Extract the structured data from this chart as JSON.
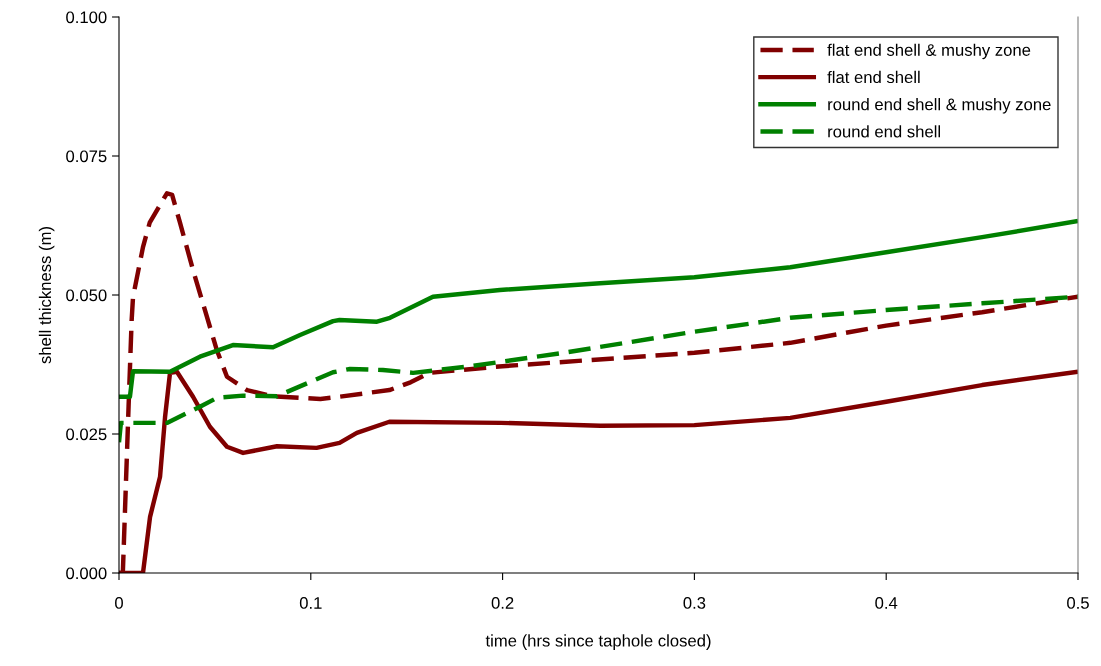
{
  "chart_data": {
    "type": "line",
    "xlabel": "time (hrs since taphole closed)",
    "ylabel": "shell thickness (m)",
    "xlim": [
      0,
      0.5
    ],
    "xticks": [
      0,
      0.1,
      0.2,
      0.3,
      0.4,
      0.5
    ],
    "ylim": [
      0,
      0.1
    ],
    "yticks": [
      {
        "value": 0,
        "label": "0.000"
      },
      {
        "value": 0.025,
        "label": "0.025"
      },
      {
        "value": 0.05,
        "label": "0.050"
      },
      {
        "value": 0.075,
        "label": "0.075"
      },
      {
        "value": 0.1,
        "label": "0.100"
      }
    ],
    "grid": false,
    "legend": "top right",
    "marker": "none",
    "series": [
      {
        "name": "flat end shell & mushy zone",
        "color": "#800000",
        "line_style": "dashed",
        "x": [
          0,
          0.002,
          0.004,
          0.005,
          0.0066,
          0.0073,
          0.0125,
          0.016,
          0.025,
          0.0277,
          0.0318,
          0.0386,
          0.0459,
          0.051,
          0.0563,
          0.0667,
          0.08,
          0.105,
          0.115,
          0.141,
          0.152,
          0.162,
          0.2,
          0.3,
          0.35,
          0.4,
          0.45,
          0.5
        ],
        "values": [
          0,
          0,
          0.02,
          0.03,
          0.0455,
          0.0496,
          0.0586,
          0.063,
          0.0683,
          0.068,
          0.063,
          0.0545,
          0.046,
          0.0401,
          0.0353,
          0.0329,
          0.0318,
          0.0313,
          0.0317,
          0.0329,
          0.0343,
          0.036,
          0.0372,
          0.0396,
          0.0414,
          0.0445,
          0.0469,
          0.0497
        ]
      },
      {
        "name": "flat end shell",
        "color": "#800000",
        "line_style": "solid",
        "x": [
          0,
          0.0125,
          0.0162,
          0.0214,
          0.024,
          0.0266,
          0.0302,
          0.0386,
          0.0474,
          0.0563,
          0.0647,
          0.0824,
          0.103,
          0.115,
          0.124,
          0.141,
          0.199,
          0.251,
          0.3,
          0.35,
          0.4,
          0.45,
          0.5
        ],
        "values": [
          0,
          0,
          0.0101,
          0.0173,
          0.028,
          0.036,
          0.0362,
          0.0317,
          0.0263,
          0.0227,
          0.0216,
          0.0228,
          0.0225,
          0.0234,
          0.0252,
          0.0272,
          0.027,
          0.0265,
          0.0266,
          0.0279,
          0.0308,
          0.0338,
          0.0362
        ]
      },
      {
        "name": "round end shell & mushy zone",
        "color": "#008000",
        "line_style": "solid",
        "x": [
          0,
          0.0057,
          0.0073,
          0.0266,
          0.0422,
          0.0594,
          0.0803,
          0.0944,
          0.1116,
          0.115,
          0.1345,
          0.1413,
          0.1637,
          0.1986,
          0.2508,
          0.3,
          0.35,
          0.4,
          0.45,
          0.5
        ],
        "values": [
          0.0317,
          0.0317,
          0.0363,
          0.0362,
          0.0389,
          0.041,
          0.0406,
          0.0428,
          0.0453,
          0.0455,
          0.0452,
          0.0459,
          0.0497,
          0.0509,
          0.0521,
          0.0532,
          0.055,
          0.0577,
          0.0604,
          0.0633
        ]
      },
      {
        "name": "round end shell",
        "color": "#008000",
        "line_style": "dashed",
        "x": [
          0,
          0.001,
          0.025,
          0.0422,
          0.0511,
          0.0647,
          0.0824,
          0.098,
          0.1116,
          0.1204,
          0.1376,
          0.1533,
          0.1814,
          0.2336,
          0.2857,
          0.3,
          0.35,
          0.4,
          0.45,
          0.5
        ],
        "values": [
          0.0235,
          0.027,
          0.027,
          0.0299,
          0.0315,
          0.0319,
          0.0318,
          0.0341,
          0.0361,
          0.0367,
          0.0365,
          0.036,
          0.0371,
          0.0397,
          0.0426,
          0.0434,
          0.0459,
          0.0473,
          0.0485,
          0.0497
        ]
      }
    ]
  }
}
